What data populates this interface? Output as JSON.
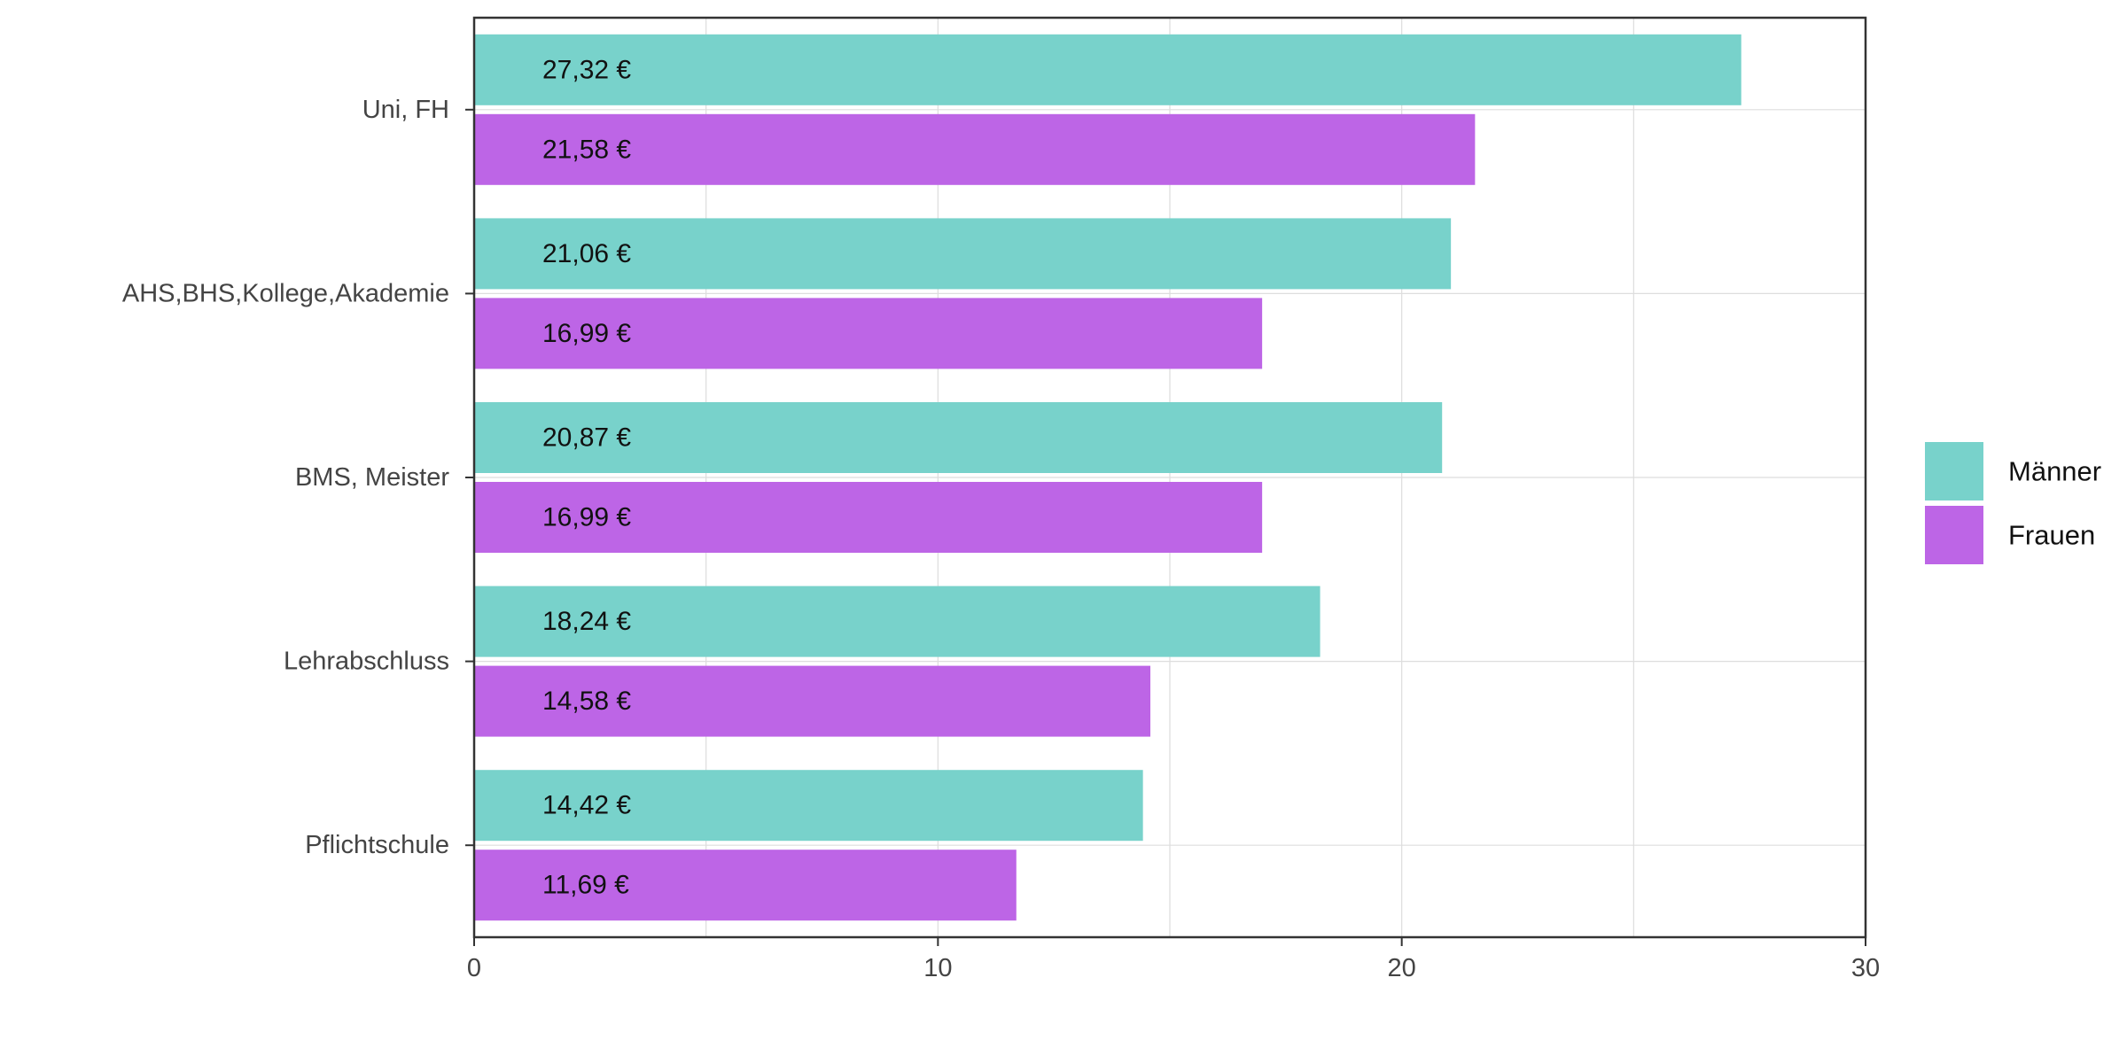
{
  "chart_data": {
    "type": "bar",
    "orientation": "horizontal",
    "title": "",
    "xlabel": "",
    "ylabel": "",
    "categories": [
      "Uni, FH",
      "AHS,BHS,Kollege,Akademie",
      "BMS, Meister",
      "Lehrabschluss",
      "Pflichtschule"
    ],
    "series": [
      {
        "name": "Männer",
        "color": "#78d2cb",
        "values": [
          27.32,
          21.06,
          20.87,
          18.24,
          14.42
        ],
        "labels": [
          "27,32 €",
          "21,06 €",
          "20,87 €",
          "18,24 €",
          "14,42 €"
        ]
      },
      {
        "name": "Frauen",
        "color": "#bd65e6",
        "values": [
          21.58,
          16.99,
          16.99,
          14.58,
          11.69
        ],
        "labels": [
          "21,58 €",
          "16,99 €",
          "16,99 €",
          "14,58 €",
          "11,69 €"
        ]
      }
    ],
    "xlim": [
      0,
      30
    ],
    "xticks": [
      0,
      10,
      20,
      30
    ],
    "xtick_labels": [
      "0",
      "10",
      "20",
      "30"
    ],
    "grid": true,
    "legend_position": "right"
  }
}
